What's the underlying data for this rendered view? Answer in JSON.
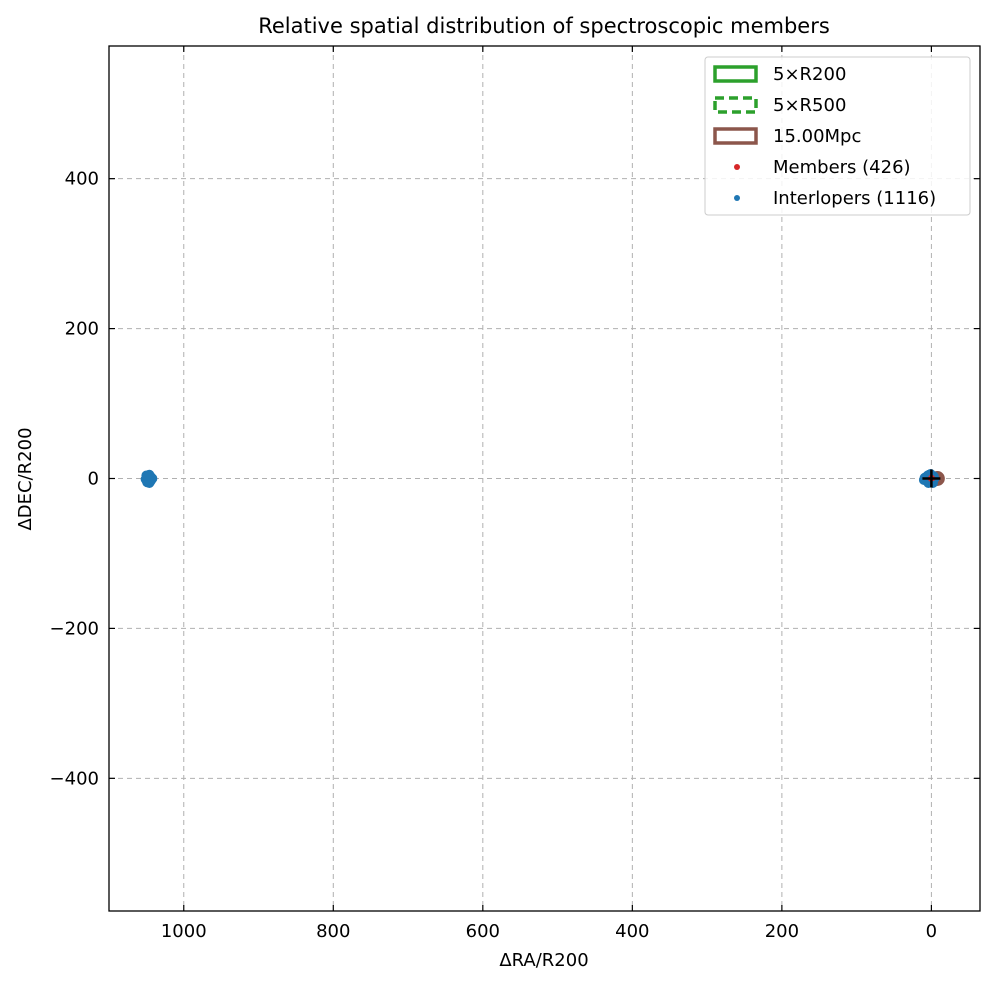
{
  "chart_data": {
    "type": "scatter",
    "title": "Relative spatial distribution of spectroscopic members",
    "xlabel": "ΔRA/R200",
    "ylabel": "ΔDEC/R200",
    "xlim": [
      1100,
      -65
    ],
    "ylim": [
      -577,
      577
    ],
    "x_inverted": true,
    "x_ticks": [
      1000,
      800,
      600,
      400,
      200,
      0
    ],
    "y_ticks": [
      -400,
      -200,
      0,
      200,
      400
    ],
    "x_tick_labels": [
      "1000",
      "800",
      "600",
      "400",
      "200",
      "0"
    ],
    "y_tick_labels": [
      "−400",
      "−200",
      "0",
      "200",
      "400"
    ],
    "grid": true,
    "legend_position": "top-right",
    "legend": [
      {
        "label": "5×R200",
        "kind": "rect-solid",
        "color": "#2ca02c"
      },
      {
        "label": "5×R500",
        "kind": "rect-dashed",
        "color": "#2ca02c"
      },
      {
        "label": "15.00Mpc",
        "kind": "rect-solid",
        "color": "#8c564b"
      },
      {
        "label": "Members (426)",
        "kind": "dot",
        "color": "#d62728"
      },
      {
        "label": "Interlopers (1116)",
        "kind": "dot",
        "color": "#1f77b4"
      }
    ],
    "series": [
      {
        "name": "Interlopers (1116)",
        "color": "#1f77b4",
        "points": [
          [
            1047,
            4
          ],
          [
            1049,
            2
          ],
          [
            1046,
            0
          ],
          [
            1048,
            -2
          ],
          [
            1045,
            -4
          ],
          [
            1050,
            1
          ],
          [
            1044,
            2
          ],
          [
            1043,
            -1
          ],
          [
            1047,
            -3
          ],
          [
            1049,
            -5
          ],
          [
            1046,
            5
          ],
          [
            1042,
            0
          ],
          [
            1048,
            3
          ],
          [
            1045,
            1
          ],
          [
            1051,
            -1
          ],
          [
            1044,
            -3
          ],
          [
            1046,
            -6
          ],
          [
            1050,
            4
          ],
          [
            2,
            3
          ],
          [
            0,
            0
          ],
          [
            -1,
            2
          ],
          [
            3,
            -2
          ],
          [
            1,
            -4
          ],
          [
            -2,
            -1
          ],
          [
            4,
            1
          ],
          [
            0,
            4
          ],
          [
            5,
            -3
          ],
          [
            2,
            -5
          ],
          [
            -3,
            3
          ],
          [
            6,
            0
          ],
          [
            1,
            6
          ],
          [
            -2,
            -6
          ],
          [
            7,
            2
          ],
          [
            3,
            5
          ],
          [
            8,
            -1
          ],
          [
            -4,
            0
          ],
          [
            4,
            -6
          ],
          [
            9,
            1
          ],
          [
            10,
            -2
          ],
          [
            2,
            -1
          ],
          [
            5,
            4
          ],
          [
            -1,
            -3
          ]
        ]
      },
      {
        "name": "Members (426)",
        "color": "#d62728",
        "points": [
          [
            0,
            0
          ],
          [
            -1,
            1
          ],
          [
            1,
            -1
          ],
          [
            -2,
            0
          ],
          [
            0,
            2
          ],
          [
            1,
            1
          ]
        ]
      }
    ],
    "center_marker": {
      "label": "+",
      "x": 0,
      "y": 0
    },
    "cluster_region": {
      "x": -8,
      "y": 0,
      "radius": 10,
      "color": "#8c564b"
    }
  }
}
